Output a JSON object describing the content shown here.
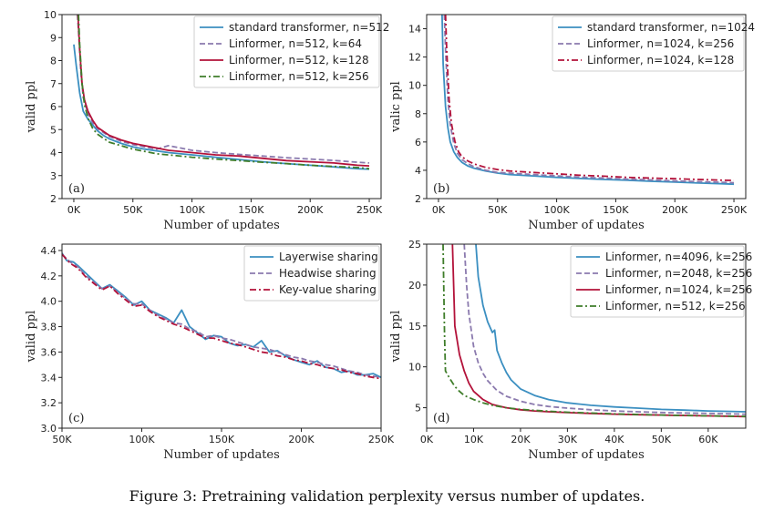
{
  "caption": "Figure 3: Pretraining validation perplexity versus number of updates.",
  "colors": {
    "blue": "#3b8fc1",
    "purple": "#8b7aae",
    "red": "#b3123a",
    "green": "#3f7d2a"
  },
  "chart_data": [
    {
      "type": "line",
      "panel_label": "(a)",
      "xlabel": "Number of updates",
      "ylabel": "valid ppl",
      "xlim": [
        -10000,
        260000
      ],
      "ylim": [
        2,
        10
      ],
      "xticks": [
        0,
        50000,
        100000,
        150000,
        200000,
        250000
      ],
      "xtick_labels": [
        "0K",
        "50K",
        "100K",
        "150K",
        "200K",
        "250K"
      ],
      "yticks": [
        2,
        3,
        4,
        5,
        6,
        7,
        8,
        9,
        10
      ],
      "ytick_labels": [
        "2",
        "3",
        "4",
        "5",
        "6",
        "7",
        "8",
        "9",
        "10"
      ],
      "legend_position": "top-right",
      "series": [
        {
          "name": "standard transformer, n=512",
          "color": "#3b8fc1",
          "dash": "solid",
          "x": [
            0,
            2000,
            5000,
            8000,
            12000,
            16000,
            20000,
            25000,
            30000,
            40000,
            50000,
            60000,
            80000,
            100000,
            120000,
            140000,
            160000,
            180000,
            200000,
            220000,
            240000,
            250000
          ],
          "y": [
            8.7,
            7.8,
            6.6,
            5.8,
            5.45,
            5.2,
            4.95,
            4.75,
            4.6,
            4.4,
            4.25,
            4.15,
            4.0,
            3.9,
            3.8,
            3.7,
            3.6,
            3.52,
            3.45,
            3.38,
            3.3,
            3.28
          ]
        },
        {
          "name": "Linformer, n=512, k=64",
          "color": "#8b7aae",
          "dash": "dash",
          "x": [
            3000,
            4000,
            6000,
            8000,
            12000,
            16000,
            20000,
            30000,
            40000,
            50000,
            60000,
            70000,
            80000,
            90000,
            100000,
            120000,
            140000,
            160000,
            180000,
            200000,
            220000,
            240000,
            250000
          ],
          "y": [
            10,
            9.3,
            7.5,
            6.4,
            5.7,
            5.3,
            5.05,
            4.7,
            4.5,
            4.35,
            4.25,
            4.15,
            4.3,
            4.2,
            4.1,
            4.0,
            3.92,
            3.85,
            3.78,
            3.72,
            3.66,
            3.58,
            3.55
          ]
        },
        {
          "name": "Linformer, n=512, k=128",
          "color": "#b3123a",
          "dash": "solid",
          "x": [
            3500,
            5000,
            7000,
            9000,
            12000,
            16000,
            20000,
            30000,
            40000,
            50000,
            60000,
            80000,
            100000,
            120000,
            140000,
            160000,
            180000,
            200000,
            220000,
            240000,
            250000
          ],
          "y": [
            10,
            8.5,
            7.0,
            6.3,
            5.8,
            5.4,
            5.1,
            4.75,
            4.55,
            4.4,
            4.3,
            4.1,
            4.0,
            3.9,
            3.85,
            3.75,
            3.65,
            3.6,
            3.55,
            3.45,
            3.42
          ]
        },
        {
          "name": "Linformer, n=512, k=256",
          "color": "#3f7d2a",
          "dash": "dashdot",
          "x": [
            4000,
            5000,
            7000,
            9000,
            12000,
            16000,
            20000,
            30000,
            40000,
            50000,
            60000,
            70000,
            80000,
            100000,
            120000,
            140000,
            160000,
            180000,
            200000,
            220000,
            240000,
            250000
          ],
          "y": [
            10,
            8.7,
            7.0,
            6.1,
            5.5,
            5.05,
            4.8,
            4.45,
            4.3,
            4.15,
            4.05,
            3.95,
            3.9,
            3.8,
            3.72,
            3.65,
            3.58,
            3.52,
            3.45,
            3.4,
            3.35,
            3.3
          ]
        }
      ]
    },
    {
      "type": "line",
      "panel_label": "(b)",
      "xlabel": "Number of updates",
      "ylabel": "valic ppl",
      "xlim": [
        -10000,
        260000
      ],
      "ylim": [
        2,
        15
      ],
      "xticks": [
        0,
        50000,
        100000,
        150000,
        200000,
        250000
      ],
      "xtick_labels": [
        "0K",
        "50K",
        "100K",
        "150K",
        "200K",
        "250K"
      ],
      "yticks": [
        2,
        4,
        6,
        8,
        10,
        12,
        14
      ],
      "ytick_labels": [
        "2",
        "4",
        "6",
        "8",
        "10",
        "12",
        "14"
      ],
      "legend_position": "top-right",
      "series": [
        {
          "name": "standard transformer, n=1024",
          "color": "#3b8fc1",
          "dash": "solid",
          "x": [
            3000,
            4000,
            6000,
            8000,
            10000,
            13000,
            16000,
            20000,
            25000,
            30000,
            40000,
            50000,
            60000,
            80000,
            100000,
            120000,
            140000,
            160000,
            180000,
            200000,
            220000,
            240000,
            250000
          ],
          "y": [
            15,
            11.5,
            8.5,
            7.0,
            6.0,
            5.3,
            4.9,
            4.55,
            4.3,
            4.15,
            3.95,
            3.8,
            3.7,
            3.6,
            3.5,
            3.42,
            3.35,
            3.3,
            3.22,
            3.17,
            3.1,
            3.05,
            3.02
          ]
        },
        {
          "name": "Linformer, n=1024, k=256",
          "color": "#8b7aae",
          "dash": "dash",
          "x": [
            5000,
            6000,
            8000,
            10000,
            13000,
            16000,
            20000,
            25000,
            30000,
            40000,
            50000,
            60000,
            80000,
            100000,
            120000,
            140000,
            160000,
            180000,
            200000,
            220000,
            240000,
            250000
          ],
          "y": [
            15,
            12.5,
            9.0,
            7.2,
            5.9,
            5.2,
            4.75,
            4.45,
            4.25,
            4.0,
            3.85,
            3.8,
            3.7,
            3.6,
            3.52,
            3.45,
            3.38,
            3.32,
            3.25,
            3.2,
            3.15,
            3.12
          ]
        },
        {
          "name": "Linformer, n=1024, k=128",
          "color": "#b3123a",
          "dash": "dashdot",
          "x": [
            6000,
            7000,
            9000,
            11000,
            14000,
            17000,
            20000,
            25000,
            30000,
            40000,
            50000,
            60000,
            80000,
            100000,
            120000,
            140000,
            160000,
            180000,
            200000,
            220000,
            240000,
            250000
          ],
          "y": [
            15,
            12.5,
            9.0,
            7.3,
            6.0,
            5.3,
            4.95,
            4.65,
            4.45,
            4.2,
            4.05,
            3.95,
            3.85,
            3.75,
            3.65,
            3.58,
            3.5,
            3.45,
            3.4,
            3.35,
            3.3,
            3.28
          ]
        }
      ]
    },
    {
      "type": "line",
      "panel_label": "(c)",
      "xlabel": "Number of updates",
      "ylabel": "valid ppl",
      "xlim": [
        50000,
        250000
      ],
      "ylim": [
        3.0,
        4.45
      ],
      "xticks": [
        50000,
        100000,
        150000,
        200000,
        250000
      ],
      "xtick_labels": [
        "50K",
        "100K",
        "150K",
        "200K",
        "250K"
      ],
      "yticks": [
        3.0,
        3.2,
        3.4,
        3.6,
        3.8,
        4.0,
        4.2,
        4.4
      ],
      "ytick_labels": [
        "3.0",
        "3.2",
        "3.4",
        "3.6",
        "3.8",
        "4.0",
        "4.2",
        "4.4"
      ],
      "legend_position": "top-right",
      "series": [
        {
          "name": "Layerwise sharing",
          "color": "#3b8fc1",
          "dash": "solid",
          "x": [
            50000,
            53000,
            57000,
            60000,
            65000,
            70000,
            75000,
            80000,
            85000,
            90000,
            95000,
            100000,
            105000,
            110000,
            115000,
            120000,
            125000,
            130000,
            135000,
            140000,
            145000,
            150000,
            155000,
            160000,
            165000,
            170000,
            175000,
            180000,
            185000,
            190000,
            195000,
            200000,
            205000,
            210000,
            215000,
            220000,
            225000,
            230000,
            235000,
            240000,
            245000,
            250000
          ],
          "y": [
            4.38,
            4.32,
            4.31,
            4.28,
            4.22,
            4.16,
            4.1,
            4.13,
            4.08,
            4.03,
            3.97,
            4.0,
            3.93,
            3.9,
            3.87,
            3.83,
            3.93,
            3.8,
            3.75,
            3.7,
            3.73,
            3.72,
            3.67,
            3.65,
            3.66,
            3.64,
            3.69,
            3.6,
            3.61,
            3.57,
            3.54,
            3.52,
            3.5,
            3.53,
            3.48,
            3.47,
            3.44,
            3.45,
            3.42,
            3.42,
            3.43,
            3.4
          ]
        },
        {
          "name": "Headwise sharing",
          "color": "#8b7aae",
          "dash": "dash",
          "x": [
            50000,
            55000,
            60000,
            65000,
            70000,
            75000,
            80000,
            85000,
            90000,
            95000,
            100000,
            105000,
            110000,
            115000,
            120000,
            125000,
            130000,
            135000,
            140000,
            145000,
            150000,
            155000,
            160000,
            165000,
            170000,
            175000,
            180000,
            185000,
            190000,
            195000,
            200000,
            205000,
            210000,
            215000,
            220000,
            225000,
            230000,
            235000,
            240000,
            245000,
            250000
          ],
          "y": [
            4.37,
            4.31,
            4.27,
            4.2,
            4.15,
            4.1,
            4.12,
            4.07,
            4.02,
            3.98,
            3.98,
            3.93,
            3.89,
            3.86,
            3.83,
            3.82,
            3.78,
            3.76,
            3.72,
            3.73,
            3.71,
            3.7,
            3.68,
            3.66,
            3.64,
            3.63,
            3.62,
            3.6,
            3.58,
            3.56,
            3.55,
            3.53,
            3.52,
            3.5,
            3.49,
            3.47,
            3.45,
            3.44,
            3.42,
            3.41,
            3.4
          ]
        },
        {
          "name": "Key-value sharing",
          "color": "#b3123a",
          "dash": "dashdot",
          "x": [
            50000,
            55000,
            60000,
            65000,
            70000,
            75000,
            80000,
            85000,
            90000,
            95000,
            100000,
            105000,
            110000,
            115000,
            120000,
            125000,
            130000,
            135000,
            140000,
            145000,
            150000,
            155000,
            160000,
            165000,
            170000,
            175000,
            180000,
            185000,
            190000,
            195000,
            200000,
            205000,
            210000,
            215000,
            220000,
            225000,
            230000,
            235000,
            240000,
            245000,
            250000
          ],
          "y": [
            4.37,
            4.3,
            4.26,
            4.19,
            4.14,
            4.09,
            4.12,
            4.06,
            4.01,
            3.96,
            3.97,
            3.92,
            3.88,
            3.85,
            3.82,
            3.8,
            3.77,
            3.74,
            3.71,
            3.71,
            3.69,
            3.67,
            3.66,
            3.64,
            3.62,
            3.6,
            3.59,
            3.57,
            3.56,
            3.54,
            3.53,
            3.51,
            3.5,
            3.48,
            3.47,
            3.46,
            3.44,
            3.43,
            3.41,
            3.4,
            3.39
          ]
        }
      ]
    },
    {
      "type": "line",
      "panel_label": "(d)",
      "xlabel": "Number of updates",
      "ylabel": "valid ppl",
      "xlim": [
        0,
        68000
      ],
      "ylim": [
        2.5,
        25
      ],
      "xticks": [
        0,
        10000,
        20000,
        30000,
        40000,
        50000,
        60000
      ],
      "xtick_labels": [
        "0K",
        "10K",
        "20K",
        "30K",
        "40K",
        "50K",
        "60K"
      ],
      "yticks": [
        5,
        10,
        15,
        20,
        25
      ],
      "ytick_labels": [
        "5",
        "10",
        "15",
        "20",
        "25"
      ],
      "legend_position": "top-right",
      "series": [
        {
          "name": "Linformer, n=4096, k=256",
          "color": "#3b8fc1",
          "dash": "solid",
          "x": [
            10500,
            11000,
            12000,
            13000,
            14000,
            14500,
            15000,
            16000,
            17000,
            18000,
            20000,
            23000,
            26000,
            30000,
            35000,
            40000,
            45000,
            50000,
            55000,
            60000,
            65000,
            68000
          ],
          "y": [
            25,
            21.0,
            17.5,
            15.5,
            14.2,
            14.5,
            12.0,
            10.5,
            9.3,
            8.4,
            7.3,
            6.5,
            6.0,
            5.6,
            5.3,
            5.1,
            4.95,
            4.8,
            4.7,
            4.6,
            4.55,
            4.5
          ]
        },
        {
          "name": "Linformer, n=2048, k=256",
          "color": "#8b7aae",
          "dash": "dash",
          "x": [
            8000,
            8500,
            9000,
            10000,
            11000,
            12000,
            13000,
            15000,
            17000,
            20000,
            23000,
            26000,
            30000,
            35000,
            40000,
            45000,
            50000,
            55000,
            60000,
            65000,
            68000
          ],
          "y": [
            25,
            20.0,
            16.5,
            12.5,
            10.5,
            9.2,
            8.3,
            7.1,
            6.4,
            5.8,
            5.4,
            5.15,
            4.95,
            4.75,
            4.6,
            4.5,
            4.42,
            4.35,
            4.3,
            4.25,
            4.2
          ]
        },
        {
          "name": "Linformer, n=1024, k=256",
          "color": "#b3123a",
          "dash": "solid",
          "x": [
            5500,
            6000,
            7000,
            8000,
            9000,
            10000,
            12000,
            14000,
            17000,
            20000,
            23000,
            26000,
            30000,
            35000,
            40000,
            45000,
            50000,
            55000,
            60000,
            65000,
            68000
          ],
          "y": [
            25,
            15.0,
            11.5,
            9.5,
            8.0,
            7.0,
            6.0,
            5.4,
            5.0,
            4.75,
            4.6,
            4.5,
            4.4,
            4.3,
            4.22,
            4.15,
            4.1,
            4.05,
            4.0,
            3.95,
            3.92
          ]
        },
        {
          "name": "Linformer, n=512, k=256",
          "color": "#3f7d2a",
          "dash": "dashdot",
          "x": [
            3500,
            3800,
            4000,
            5000,
            6000,
            7000,
            8000,
            10000,
            12000,
            14000,
            17000,
            20000,
            25000,
            30000,
            35000,
            40000,
            45000,
            50000,
            55000,
            60000,
            65000,
            68000
          ],
          "y": [
            25,
            14.0,
            9.5,
            8.5,
            7.6,
            7.0,
            6.5,
            6.0,
            5.6,
            5.3,
            5.0,
            4.8,
            4.6,
            4.45,
            4.35,
            4.25,
            4.17,
            4.1,
            4.05,
            4.0,
            3.96,
            3.94
          ]
        }
      ]
    }
  ]
}
